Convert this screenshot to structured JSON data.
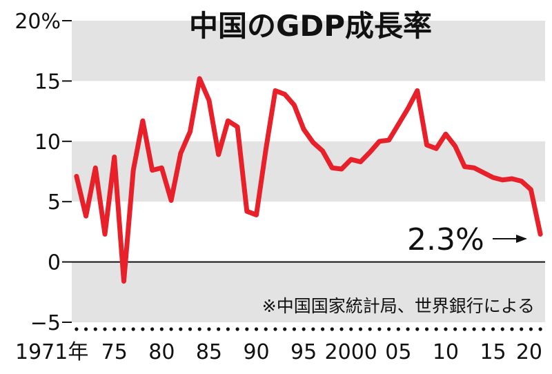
{
  "chart_data": {
    "type": "line",
    "title": "中国のGDP成長率",
    "source_note": "※中国国家統計局、世界銀行による",
    "ylim": [
      -5,
      20
    ],
    "yticks": [
      {
        "value": 20,
        "label": "20%"
      },
      {
        "value": 15,
        "label": "15"
      },
      {
        "value": 10,
        "label": "10"
      },
      {
        "value": 5,
        "label": "5"
      },
      {
        "value": 0,
        "label": "0"
      },
      {
        "value": -5,
        "label": "−5"
      }
    ],
    "xlim": [
      1970.5,
      2020.5
    ],
    "xticks": [
      {
        "value": 1971,
        "label": "1971年"
      },
      {
        "value": 1975,
        "label": "75"
      },
      {
        "value": 1980,
        "label": "80"
      },
      {
        "value": 1985,
        "label": "85"
      },
      {
        "value": 1990,
        "label": "90"
      },
      {
        "value": 1995,
        "label": "95"
      },
      {
        "value": 2000,
        "label": "2000"
      },
      {
        "value": 2005,
        "label": "05"
      },
      {
        "value": 2010,
        "label": "10"
      },
      {
        "value": 2015,
        "label": "15"
      },
      {
        "value": 2020,
        "label": "20"
      }
    ],
    "grid": "alternating horizontal bands",
    "line_color": "#e8202a",
    "band_color": "#e3e3e3",
    "callout": {
      "label": "2.3%",
      "x": 2020,
      "y": 2.3
    },
    "x": [
      1971,
      1972,
      1973,
      1974,
      1975,
      1976,
      1977,
      1978,
      1979,
      1980,
      1981,
      1982,
      1983,
      1984,
      1985,
      1986,
      1987,
      1988,
      1989,
      1990,
      1991,
      1992,
      1993,
      1994,
      1995,
      1996,
      1997,
      1998,
      1999,
      2000,
      2001,
      2002,
      2003,
      2004,
      2005,
      2006,
      2007,
      2008,
      2009,
      2010,
      2011,
      2012,
      2013,
      2014,
      2015,
      2016,
      2017,
      2018,
      2019,
      2020
    ],
    "values": [
      7.1,
      3.8,
      7.8,
      2.3,
      8.7,
      -1.6,
      7.6,
      11.7,
      7.6,
      7.8,
      5.1,
      9.0,
      10.8,
      15.2,
      13.4,
      8.9,
      11.7,
      11.2,
      4.2,
      3.9,
      9.3,
      14.2,
      13.9,
      13.0,
      11.0,
      9.9,
      9.2,
      7.8,
      7.7,
      8.5,
      8.3,
      9.1,
      10.0,
      10.1,
      11.4,
      12.7,
      14.2,
      9.7,
      9.4,
      10.6,
      9.6,
      7.9,
      7.8,
      7.4,
      7.0,
      6.8,
      6.9,
      6.7,
      6.0,
      2.3
    ]
  }
}
